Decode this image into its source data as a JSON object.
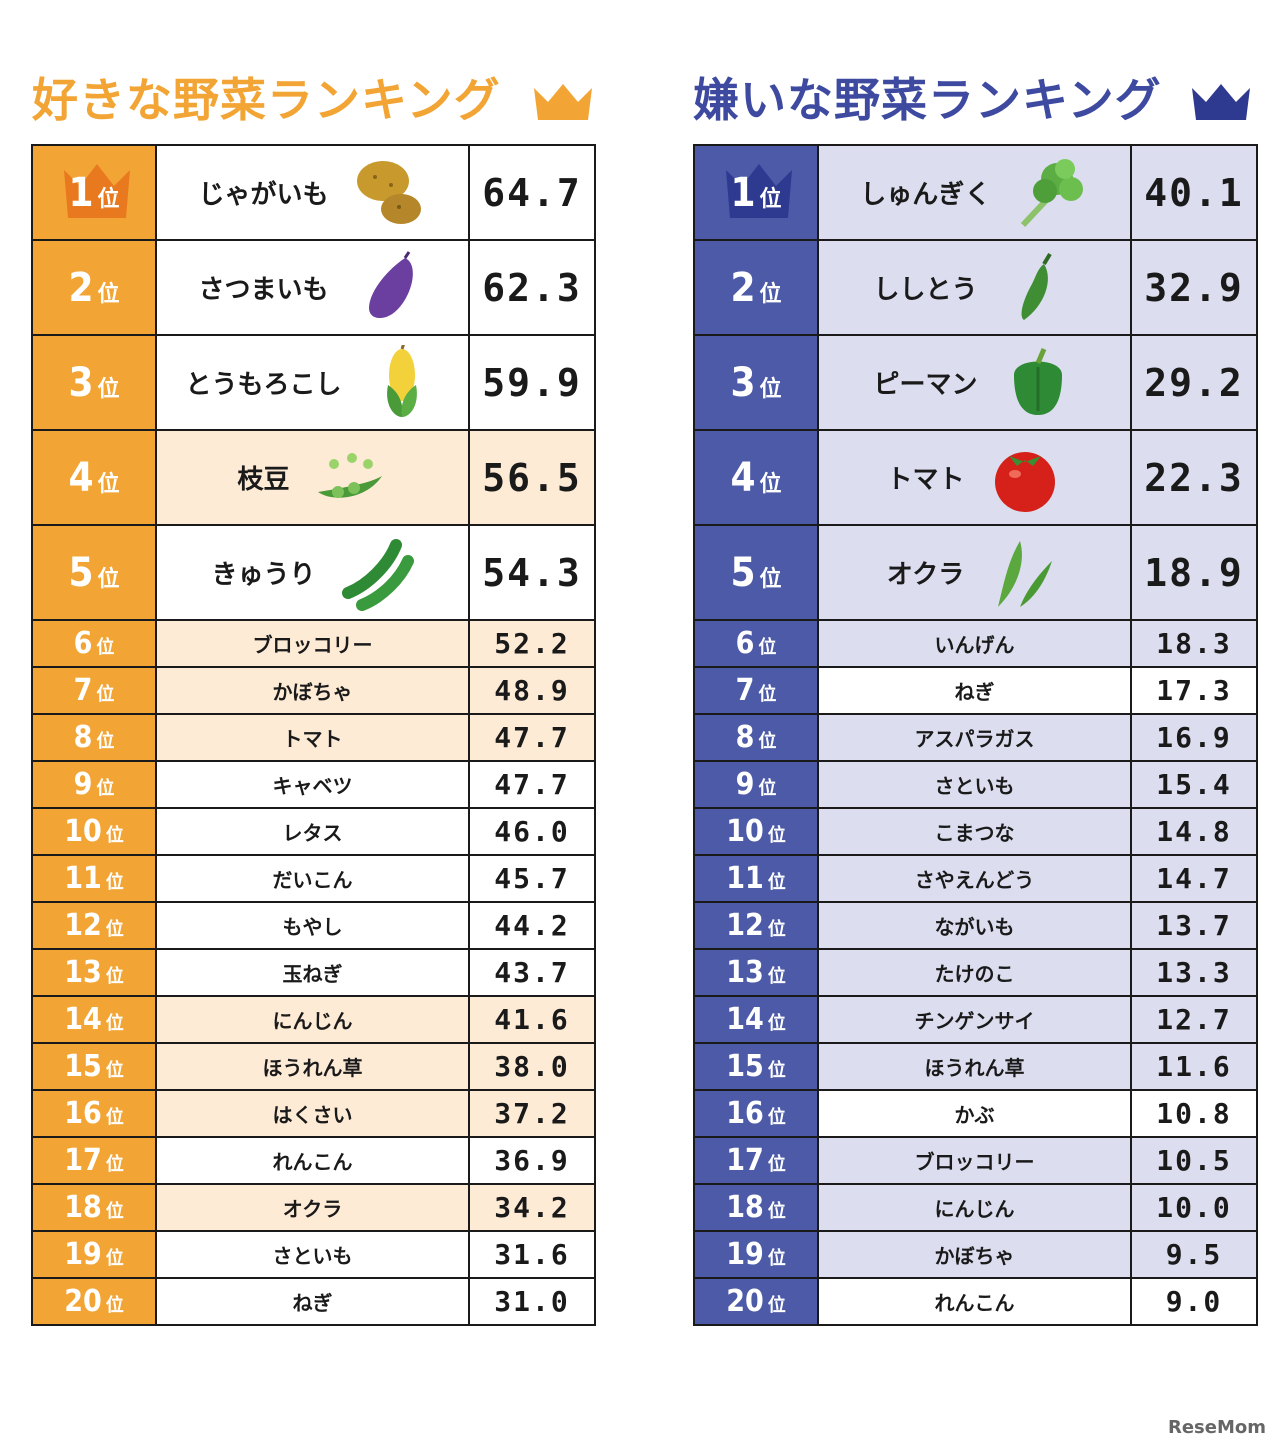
{
  "like": {
    "title": "好きな野菜ランキング",
    "rank_unit": "位",
    "rows": [
      {
        "rank": "1",
        "name": "じゃがいも",
        "value": "64.7",
        "icon": "potato-icon"
      },
      {
        "rank": "2",
        "name": "さつまいも",
        "value": "62.3",
        "icon": "sweet-potato-icon"
      },
      {
        "rank": "3",
        "name": "とうもろこし",
        "value": "59.9",
        "icon": "corn-icon"
      },
      {
        "rank": "4",
        "name": "枝豆",
        "value": "56.5",
        "icon": "edamame-icon"
      },
      {
        "rank": "5",
        "name": "きゅうり",
        "value": "54.3",
        "icon": "cucumber-icon"
      },
      {
        "rank": "6",
        "name": "ブロッコリー",
        "value": "52.2"
      },
      {
        "rank": "7",
        "name": "かぼちゃ",
        "value": "48.9"
      },
      {
        "rank": "8",
        "name": "トマト",
        "value": "47.7"
      },
      {
        "rank": "9",
        "name": "キャベツ",
        "value": "47.7"
      },
      {
        "rank": "10",
        "name": "レタス",
        "value": "46.0"
      },
      {
        "rank": "11",
        "name": "だいこん",
        "value": "45.7"
      },
      {
        "rank": "12",
        "name": "もやし",
        "value": "44.2"
      },
      {
        "rank": "13",
        "name": "玉ねぎ",
        "value": "43.7"
      },
      {
        "rank": "14",
        "name": "にんじん",
        "value": "41.6"
      },
      {
        "rank": "15",
        "name": "ほうれん草",
        "value": "38.0"
      },
      {
        "rank": "16",
        "name": "はくさい",
        "value": "37.2"
      },
      {
        "rank": "17",
        "name": "れんこん",
        "value": "36.9"
      },
      {
        "rank": "18",
        "name": "オクラ",
        "value": "34.2"
      },
      {
        "rank": "19",
        "name": "さといも",
        "value": "31.6"
      },
      {
        "rank": "20",
        "name": "ねぎ",
        "value": "31.0"
      }
    ]
  },
  "dislike": {
    "title": "嫌いな野菜ランキング",
    "rank_unit": "位",
    "rows": [
      {
        "rank": "1",
        "name": "しゅんぎく",
        "value": "40.1",
        "icon": "shungiku-icon"
      },
      {
        "rank": "2",
        "name": "ししとう",
        "value": "32.9",
        "icon": "shishito-icon"
      },
      {
        "rank": "3",
        "name": "ピーマン",
        "value": "29.2",
        "icon": "green-pepper-icon"
      },
      {
        "rank": "4",
        "name": "トマト",
        "value": "22.3",
        "icon": "tomato-icon"
      },
      {
        "rank": "5",
        "name": "オクラ",
        "value": "18.9",
        "icon": "okra-icon"
      },
      {
        "rank": "6",
        "name": "いんげん",
        "value": "18.3"
      },
      {
        "rank": "7",
        "name": "ねぎ",
        "value": "17.3"
      },
      {
        "rank": "8",
        "name": "アスパラガス",
        "value": "16.9"
      },
      {
        "rank": "9",
        "name": "さといも",
        "value": "15.4"
      },
      {
        "rank": "10",
        "name": "こまつな",
        "value": "14.8"
      },
      {
        "rank": "11",
        "name": "さやえんどう",
        "value": "14.7"
      },
      {
        "rank": "12",
        "name": "ながいも",
        "value": "13.7"
      },
      {
        "rank": "13",
        "name": "たけのこ",
        "value": "13.3"
      },
      {
        "rank": "14",
        "name": "チンゲンサイ",
        "value": "12.7"
      },
      {
        "rank": "15",
        "name": "ほうれん草",
        "value": "11.6"
      },
      {
        "rank": "16",
        "name": "かぶ",
        "value": "10.8"
      },
      {
        "rank": "17",
        "name": "ブロッコリー",
        "value": "10.5"
      },
      {
        "rank": "18",
        "name": "にんじん",
        "value": "10.0"
      },
      {
        "rank": "19",
        "name": "かぼちゃ",
        "value": "9.5"
      },
      {
        "rank": "20",
        "name": "れんこん",
        "value": "9.0"
      }
    ]
  },
  "colors": {
    "like_accent": "#f2a535",
    "like_highlight": "#fdebd6",
    "dislike_accent": "#4c5aa8",
    "dislike_title": "#3d4aa0",
    "dislike_highlight": "#dcdeef"
  },
  "watermark": "ReseMom"
}
